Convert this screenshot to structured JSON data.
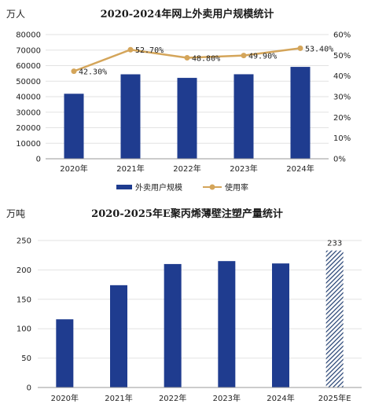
{
  "chart_data": [
    {
      "type": "bar",
      "title": "2020-2024年网上外卖用户规模统计",
      "unit_label": "万人",
      "categories": [
        "2020年",
        "2021年",
        "2022年",
        "2023年",
        "2024年"
      ],
      "series": [
        {
          "name": "外卖用户规模",
          "type": "bar",
          "axis": "left",
          "values": [
            41883,
            54416,
            52116,
            54454,
            59200
          ],
          "color": "#1f3c8f"
        },
        {
          "name": "使用率",
          "type": "line",
          "axis": "right",
          "values": [
            42.3,
            52.7,
            48.8,
            49.9,
            53.4
          ],
          "labels": [
            "42.30%",
            "52.70%",
            "48.80%",
            "49.90%",
            "53.40%"
          ],
          "color": "#d4a55a"
        }
      ],
      "ylim_left": [
        0,
        80000
      ],
      "yticks_left": [
        "0",
        "10000",
        "20000",
        "30000",
        "40000",
        "50000",
        "60000",
        "70000",
        "80000"
      ],
      "ylim_right": [
        0,
        60
      ],
      "yticks_right": [
        "0%",
        "10%",
        "20%",
        "30%",
        "40%",
        "50%",
        "60%"
      ],
      "legend": "bottom",
      "grid": true
    },
    {
      "type": "bar",
      "title": "2020-2025年E聚丙烯薄壁注塑产量统计",
      "unit_label": "万吨",
      "categories": [
        "2020年",
        "2021年",
        "2022年",
        "2023年",
        "2024年",
        "2025年E"
      ],
      "values": [
        116,
        174,
        210,
        215,
        211,
        233
      ],
      "estimate_index": 5,
      "value_labels": [
        "",
        "",
        "",
        "",
        "",
        "233"
      ],
      "ylim": [
        0,
        250
      ],
      "yticks": [
        "0",
        "50",
        "100",
        "150",
        "200",
        "250"
      ],
      "bar_color": "#1f3c8f",
      "grid": true
    }
  ]
}
